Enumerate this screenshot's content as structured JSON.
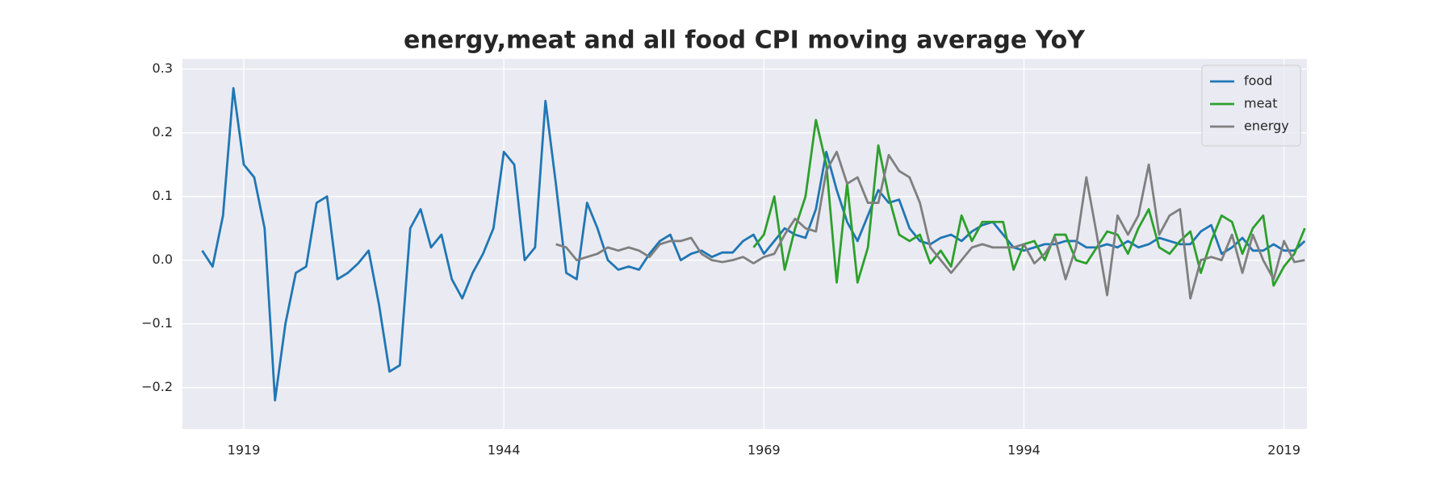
{
  "chart_data": {
    "type": "line",
    "title": "energy,meat and all food CPI moving average YoY",
    "x": [
      1915,
      1916,
      1917,
      1918,
      1919,
      1920,
      1921,
      1922,
      1923,
      1924,
      1925,
      1926,
      1927,
      1928,
      1929,
      1930,
      1931,
      1932,
      1933,
      1934,
      1935,
      1936,
      1937,
      1938,
      1939,
      1940,
      1941,
      1942,
      1943,
      1944,
      1945,
      1946,
      1947,
      1948,
      1949,
      1950,
      1951,
      1952,
      1953,
      1954,
      1955,
      1956,
      1957,
      1958,
      1959,
      1960,
      1961,
      1962,
      1963,
      1964,
      1965,
      1966,
      1967,
      1968,
      1969,
      1970,
      1971,
      1972,
      1973,
      1974,
      1975,
      1976,
      1977,
      1978,
      1979,
      1980,
      1981,
      1982,
      1983,
      1984,
      1985,
      1986,
      1987,
      1988,
      1989,
      1990,
      1991,
      1992,
      1993,
      1994,
      1995,
      1996,
      1997,
      1998,
      1999,
      2000,
      2001,
      2002,
      2003,
      2004,
      2005,
      2006,
      2007,
      2008,
      2009,
      2010,
      2011,
      2012,
      2013,
      2014,
      2015,
      2016,
      2017,
      2018,
      2019,
      2020,
      2021
    ],
    "series": [
      {
        "name": "food",
        "color": "#1f77b4",
        "values": [
          0.015,
          -0.01,
          0.07,
          0.27,
          0.15,
          0.13,
          0.05,
          -0.22,
          -0.1,
          -0.02,
          -0.01,
          0.09,
          0.1,
          -0.03,
          -0.02,
          -0.005,
          0.015,
          -0.07,
          -0.175,
          -0.165,
          0.05,
          0.08,
          0.02,
          0.04,
          -0.03,
          -0.06,
          -0.02,
          0.01,
          0.05,
          0.17,
          0.15,
          0.0,
          0.02,
          0.25,
          0.12,
          -0.02,
          -0.03,
          0.09,
          0.05,
          0.0,
          -0.015,
          -0.01,
          -0.015,
          0.01,
          0.03,
          0.04,
          0.0,
          0.01,
          0.015,
          0.005,
          0.012,
          0.012,
          0.03,
          0.04,
          0.01,
          0.03,
          0.05,
          0.04,
          0.035,
          0.08,
          0.17,
          0.11,
          0.06,
          0.03,
          0.07,
          0.11,
          0.09,
          0.095,
          0.05,
          0.03,
          0.025,
          0.035,
          0.04,
          0.03,
          0.045,
          0.055,
          0.06,
          0.04,
          0.02,
          0.015,
          0.02,
          0.025,
          0.025,
          0.03,
          0.03,
          0.02,
          0.02,
          0.025,
          0.02,
          0.03,
          0.02,
          0.025,
          0.035,
          0.03,
          0.025,
          0.025,
          0.045,
          0.055,
          0.01,
          0.02,
          0.035,
          0.015,
          0.015,
          0.025,
          0.015,
          0.015,
          0.03
        ]
      },
      {
        "name": "meat",
        "color": "#2ca02c",
        "values": [
          null,
          null,
          null,
          null,
          null,
          null,
          null,
          null,
          null,
          null,
          null,
          null,
          null,
          null,
          null,
          null,
          null,
          null,
          null,
          null,
          null,
          null,
          null,
          null,
          null,
          null,
          null,
          null,
          null,
          null,
          null,
          null,
          null,
          null,
          null,
          null,
          null,
          null,
          null,
          null,
          null,
          null,
          null,
          null,
          null,
          null,
          null,
          null,
          null,
          null,
          null,
          null,
          null,
          0.02,
          0.04,
          0.1,
          -0.015,
          0.05,
          0.1,
          0.22,
          0.15,
          -0.035,
          0.12,
          -0.035,
          0.02,
          0.18,
          0.1,
          0.04,
          0.03,
          0.04,
          -0.005,
          0.015,
          -0.01,
          0.07,
          0.03,
          0.06,
          0.06,
          0.06,
          -0.015,
          0.025,
          0.03,
          0.0,
          0.04,
          0.04,
          0.0,
          -0.005,
          0.02,
          0.045,
          0.04,
          0.01,
          0.05,
          0.08,
          0.02,
          0.01,
          0.03,
          0.045,
          -0.02,
          0.03,
          0.07,
          0.06,
          0.01,
          0.05,
          0.07,
          -0.04,
          -0.01,
          0.01,
          0.05
        ]
      },
      {
        "name": "energy",
        "color": "#7f7f7f",
        "values": [
          null,
          null,
          null,
          null,
          null,
          null,
          null,
          null,
          null,
          null,
          null,
          null,
          null,
          null,
          null,
          null,
          null,
          null,
          null,
          null,
          null,
          null,
          null,
          null,
          null,
          null,
          null,
          null,
          null,
          null,
          null,
          null,
          null,
          null,
          0.025,
          0.02,
          0.0,
          0.005,
          0.01,
          0.02,
          0.015,
          0.02,
          0.015,
          0.005,
          0.025,
          0.03,
          0.03,
          0.035,
          0.01,
          0.0,
          -0.003,
          0.0,
          0.005,
          -0.005,
          0.005,
          0.01,
          0.04,
          0.065,
          0.05,
          0.045,
          0.14,
          0.17,
          0.12,
          0.13,
          0.09,
          0.09,
          0.165,
          0.14,
          0.13,
          0.09,
          0.02,
          0.0,
          -0.02,
          0.0,
          0.02,
          0.025,
          0.02,
          0.02,
          0.02,
          0.025,
          -0.005,
          0.01,
          0.035,
          -0.03,
          0.02,
          0.13,
          0.04,
          -0.055,
          0.07,
          0.04,
          0.07,
          0.15,
          0.04,
          0.07,
          0.08,
          -0.06,
          0.0,
          0.005,
          0.0,
          0.04,
          -0.02,
          0.04,
          0.0,
          -0.03,
          0.03,
          -0.003,
          0.0
        ]
      }
    ],
    "xlim": [
      1913.1,
      2021.2
    ],
    "xticks": [
      1919,
      1944,
      1969,
      1994,
      2019
    ],
    "ylim": [
      -0.265,
      0.316
    ],
    "yticks": [
      {
        "value": -0.2,
        "label": "−0.2"
      },
      {
        "value": -0.1,
        "label": "−0.1"
      },
      {
        "value": 0.0,
        "label": "0.0"
      },
      0.1,
      0.2,
      0.3
    ],
    "grid": true,
    "legend": "upper right"
  }
}
